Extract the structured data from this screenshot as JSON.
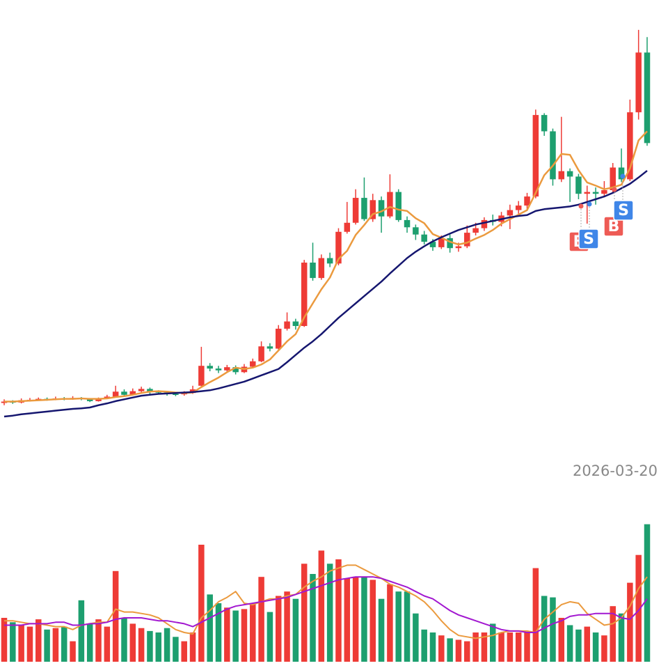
{
  "chart_data": {
    "type": "candlestick",
    "date_label": "2026-03-20",
    "ylim": [
      0,
      100
    ],
    "up_color": "#ee3b36",
    "down_color": "#1d9f6f",
    "open": [
      11.0,
      11.3,
      11.1,
      11.6,
      11.7,
      11.9,
      11.8,
      12.0,
      11.9,
      12.1,
      11.9,
      11.4,
      12.0,
      12.4,
      13.5,
      12.8,
      13.6,
      14.1,
      13.5,
      13.3,
      13.0,
      12.9,
      13.2,
      14.8,
      19.2,
      18.6,
      18.2,
      18.9,
      17.8,
      19.0,
      20.2,
      23.5,
      23.0,
      27.4,
      29.0,
      28.0,
      42.0,
      38.6,
      43.0,
      41.8,
      48.8,
      50.8,
      56.3,
      51.6,
      55.8,
      52.2,
      57.6,
      51.4,
      49.8,
      48.2,
      46.6,
      45.4,
      47.4,
      45.2,
      45.6,
      48.6,
      49.6,
      51.4,
      51.0,
      52.4,
      53.6,
      54.6,
      56.6,
      74.6,
      71.0,
      60.4,
      62.2,
      61.0,
      57.2,
      57.6,
      57.2,
      58.0,
      63.0,
      60.4,
      75.2,
      88.4
    ],
    "high": [
      11.8,
      11.6,
      12.0,
      12.1,
      12.2,
      12.2,
      12.4,
      12.3,
      12.5,
      12.3,
      12.0,
      12.2,
      12.8,
      14.8,
      14.0,
      14.2,
      14.6,
      14.4,
      13.8,
      13.6,
      13.4,
      13.6,
      14.8,
      23.4,
      19.8,
      19.2,
      19.4,
      19.3,
      19.6,
      20.8,
      24.6,
      24.2,
      28.2,
      31.0,
      29.6,
      42.6,
      46.4,
      43.8,
      44.2,
      49.6,
      55.4,
      58.2,
      60.8,
      57.2,
      56.6,
      61.5,
      58.2,
      52.2,
      50.4,
      49.0,
      47.2,
      48.0,
      48.2,
      46.4,
      50.2,
      50.8,
      52.0,
      52.6,
      53.2,
      54.8,
      55.6,
      57.4,
      75.8,
      75.0,
      71.6,
      74.2,
      62.8,
      61.6,
      59.0,
      58.6,
      60.0,
      64.0,
      67.2,
      78.0,
      93.4,
      91.8
    ],
    "low": [
      10.5,
      10.8,
      10.9,
      11.3,
      11.5,
      11.5,
      11.6,
      11.6,
      11.7,
      11.6,
      11.2,
      11.3,
      11.9,
      12.3,
      12.5,
      12.7,
      13.2,
      13.0,
      12.9,
      12.6,
      12.5,
      12.6,
      13.0,
      14.5,
      18.0,
      17.6,
      17.8,
      17.3,
      17.6,
      18.8,
      20.0,
      22.4,
      22.8,
      27.0,
      27.2,
      27.8,
      38.0,
      38.2,
      41.0,
      41.4,
      48.4,
      50.4,
      51.2,
      51.0,
      48.6,
      51.8,
      51.0,
      48.6,
      47.0,
      46.0,
      44.6,
      45.0,
      44.2,
      44.4,
      45.2,
      48.0,
      49.0,
      50.2,
      50.0,
      49.4,
      52.8,
      53.8,
      56.2,
      70.0,
      59.0,
      59.8,
      55.4,
      56.0,
      50.6,
      54.8,
      56.4,
      57.4,
      59.8,
      60.0,
      73.6,
      67.8
    ],
    "close": [
      11.3,
      11.1,
      11.6,
      11.7,
      11.9,
      11.8,
      12.0,
      11.9,
      12.1,
      11.9,
      11.4,
      12.0,
      12.4,
      13.5,
      12.8,
      13.6,
      14.1,
      13.5,
      13.3,
      13.0,
      12.9,
      13.2,
      14.0,
      19.2,
      18.6,
      18.2,
      18.9,
      17.8,
      19.0,
      20.2,
      23.5,
      23.0,
      27.4,
      29.0,
      28.0,
      42.0,
      38.6,
      43.0,
      41.8,
      48.8,
      50.8,
      56.3,
      51.6,
      55.8,
      52.2,
      57.6,
      51.4,
      49.8,
      48.2,
      46.6,
      45.4,
      47.4,
      45.2,
      45.6,
      48.6,
      49.6,
      51.4,
      51.0,
      52.4,
      53.6,
      54.6,
      56.6,
      74.6,
      71.0,
      60.4,
      62.2,
      61.0,
      57.2,
      57.6,
      57.2,
      58.0,
      63.0,
      60.4,
      75.2,
      88.4,
      68.4
    ],
    "ma": [
      {
        "color": "#eb9a3e",
        "values": [
          11.3,
          11.3,
          11.4,
          11.5,
          11.6,
          11.7,
          11.8,
          11.9,
          11.9,
          12.0,
          11.9,
          11.9,
          12.0,
          12.3,
          12.5,
          12.8,
          13.2,
          13.5,
          13.6,
          13.5,
          13.3,
          13.2,
          13.3,
          14.5,
          15.6,
          16.6,
          17.8,
          18.8,
          18.5,
          18.8,
          19.5,
          20.6,
          22.6,
          24.6,
          26.2,
          29.9,
          33.0,
          36.1,
          38.7,
          42.8,
          44.6,
          48.1,
          50.3,
          52.7,
          53.3,
          54.3,
          53.7,
          53.4,
          51.8,
          50.7,
          48.3,
          47.5,
          46.6,
          46.0,
          46.4,
          47.3,
          48.1,
          49.2,
          50.6,
          51.6,
          52.6,
          53.6,
          57.4,
          61.3,
          63.4,
          66.0,
          65.8,
          62.4,
          59.7,
          59.0,
          58.2,
          58.6,
          59.2,
          62.8,
          69.0,
          71.0
        ]
      },
      {
        "color": "#15166f",
        "values": [
          8.0,
          8.2,
          8.5,
          8.7,
          8.9,
          9.1,
          9.3,
          9.5,
          9.7,
          9.8,
          10.0,
          10.5,
          10.9,
          11.4,
          11.8,
          12.2,
          12.6,
          12.8,
          13.0,
          13.1,
          13.2,
          13.3,
          13.4,
          13.6,
          13.8,
          14.2,
          14.7,
          15.2,
          15.7,
          16.4,
          17.1,
          17.8,
          18.5,
          20.0,
          21.6,
          23.2,
          24.6,
          26.2,
          28.0,
          29.8,
          31.4,
          33.0,
          34.6,
          36.2,
          37.8,
          39.6,
          41.3,
          43.0,
          44.4,
          45.6,
          46.7,
          47.6,
          48.4,
          49.2,
          49.8,
          50.4,
          50.8,
          51.2,
          51.6,
          52.0,
          52.3,
          52.5,
          53.4,
          53.8,
          54.0,
          54.2,
          54.4,
          54.8,
          55.4,
          56.0,
          56.6,
          57.4,
          58.4,
          59.4,
          60.8,
          62.3
        ]
      }
    ],
    "volume": {
      "ylim": [
        0,
        100
      ],
      "values": [
        30,
        27,
        25,
        24,
        29,
        22,
        23,
        24,
        14,
        42,
        26,
        29,
        24,
        62,
        30,
        26,
        23,
        21,
        20,
        23,
        17,
        14,
        20,
        80,
        46,
        40,
        37,
        35,
        36,
        40,
        58,
        34,
        45,
        48,
        43,
        67,
        60,
        76,
        67,
        70,
        57,
        58,
        58,
        56,
        43,
        53,
        48,
        48,
        33,
        22,
        20,
        18,
        16,
        15,
        14,
        20,
        20,
        26,
        20,
        20,
        20,
        20,
        64,
        45,
        44,
        30,
        25,
        22,
        24,
        20,
        18,
        38,
        33,
        54,
        73,
        94
      ],
      "ma": [
        {
          "color": "#eb9a3e",
          "values": [
            28,
            28,
            27,
            26,
            26,
            25,
            24,
            24,
            22,
            25,
            26,
            27,
            27,
            36,
            34,
            34,
            33,
            32,
            30,
            26,
            22,
            20,
            19,
            30,
            35,
            41,
            44,
            48,
            40,
            39,
            41,
            43,
            43,
            45,
            46,
            51,
            55,
            58,
            62,
            64,
            66,
            66,
            63,
            60,
            57,
            53,
            51,
            48,
            45,
            41,
            35,
            28,
            22,
            18,
            17,
            16,
            17,
            18,
            20,
            21,
            21,
            21,
            20,
            29,
            34,
            39,
            41,
            40,
            33,
            29,
            25,
            26,
            30,
            38,
            50,
            58
          ]
        },
        {
          "color": "#a217d0",
          "values": [
            25,
            25,
            25,
            26,
            26,
            26,
            27,
            27,
            25,
            25,
            26,
            26,
            27,
            29,
            30,
            30,
            30,
            29,
            28,
            28,
            27,
            26,
            24,
            27,
            30,
            33,
            36,
            38,
            39,
            40,
            41,
            42,
            43,
            44,
            46,
            48,
            50,
            52,
            54,
            56,
            57,
            58,
            58,
            58,
            57,
            55,
            53,
            51,
            48,
            45,
            43,
            39,
            35,
            32,
            30,
            28,
            26,
            24,
            22,
            21,
            21,
            20,
            20,
            23,
            26,
            28,
            31,
            32,
            32,
            33,
            33,
            33,
            30,
            29,
            35,
            43
          ]
        }
      ]
    },
    "annotations": [
      "B",
      "S",
      "B",
      "S"
    ]
  }
}
